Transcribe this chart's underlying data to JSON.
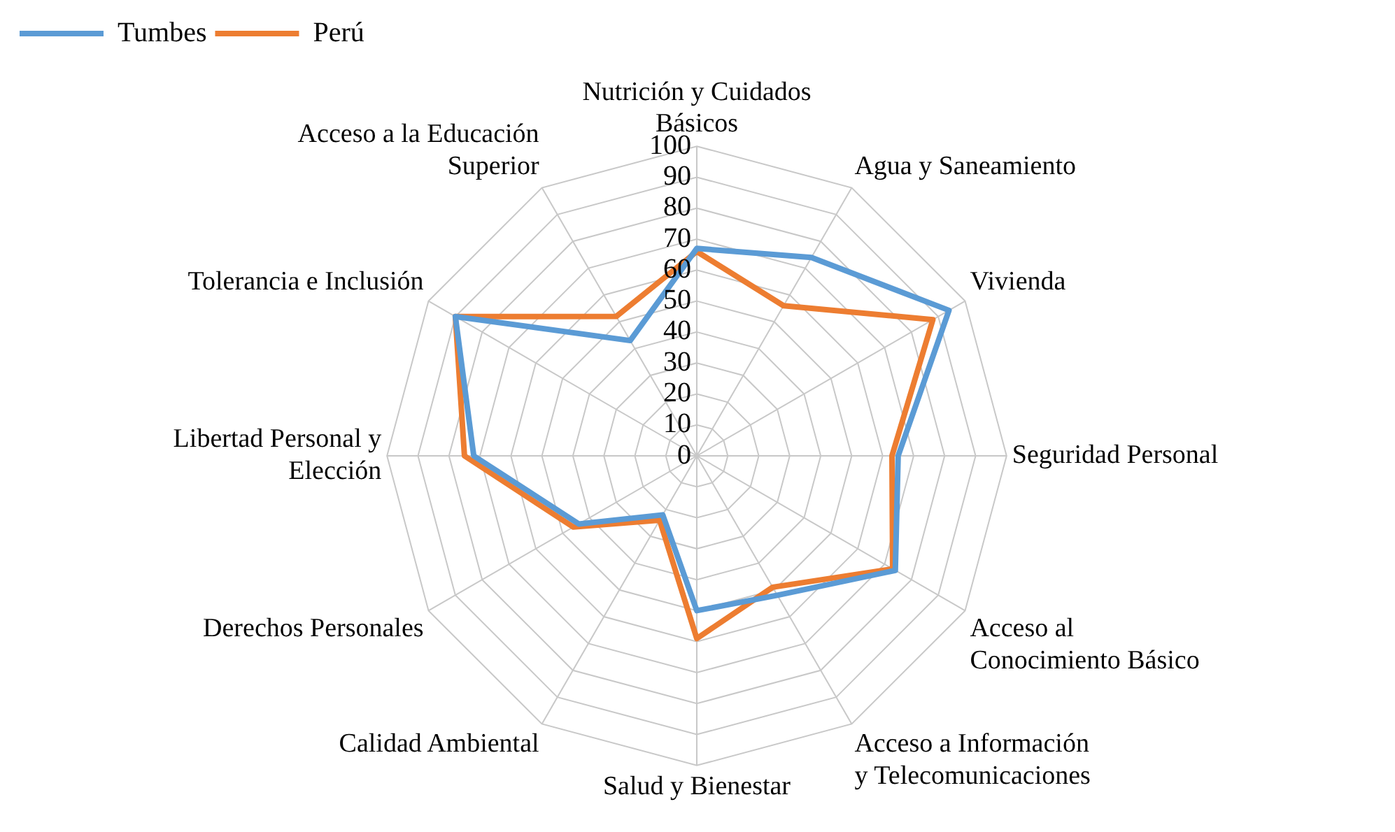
{
  "chart_data": {
    "type": "radar",
    "categories": [
      "Nutrición y Cuidados Básicos",
      "Agua y Saneamiento",
      "Vivienda",
      "Seguridad Personal",
      "Acceso al Conocimiento Básico",
      "Acceso a Información y Telecomunicaciones",
      "Salud y Bienestar",
      "Calidad Ambiental",
      "Derechos Personales",
      "Libertad Personal y Elección",
      "Tolerancia e Inclusión",
      "Acceso a la Educación Superior"
    ],
    "series": [
      {
        "name": "Tumbes",
        "color": "#5b9bd5",
        "values": [
          67,
          74,
          94,
          65,
          74,
          52,
          50,
          22,
          44,
          72,
          90,
          43
        ]
      },
      {
        "name": "Perú",
        "color": "#ed7d31",
        "values": [
          66,
          56,
          88,
          63,
          73,
          49,
          59,
          24,
          46,
          75,
          90,
          52
        ]
      }
    ],
    "ylim": [
      0,
      100
    ],
    "yticks": [
      0,
      10,
      20,
      30,
      40,
      50,
      60,
      70,
      80,
      90,
      100
    ],
    "grid": true,
    "legend": "top left",
    "marker": "none",
    "line_style": "solid"
  }
}
